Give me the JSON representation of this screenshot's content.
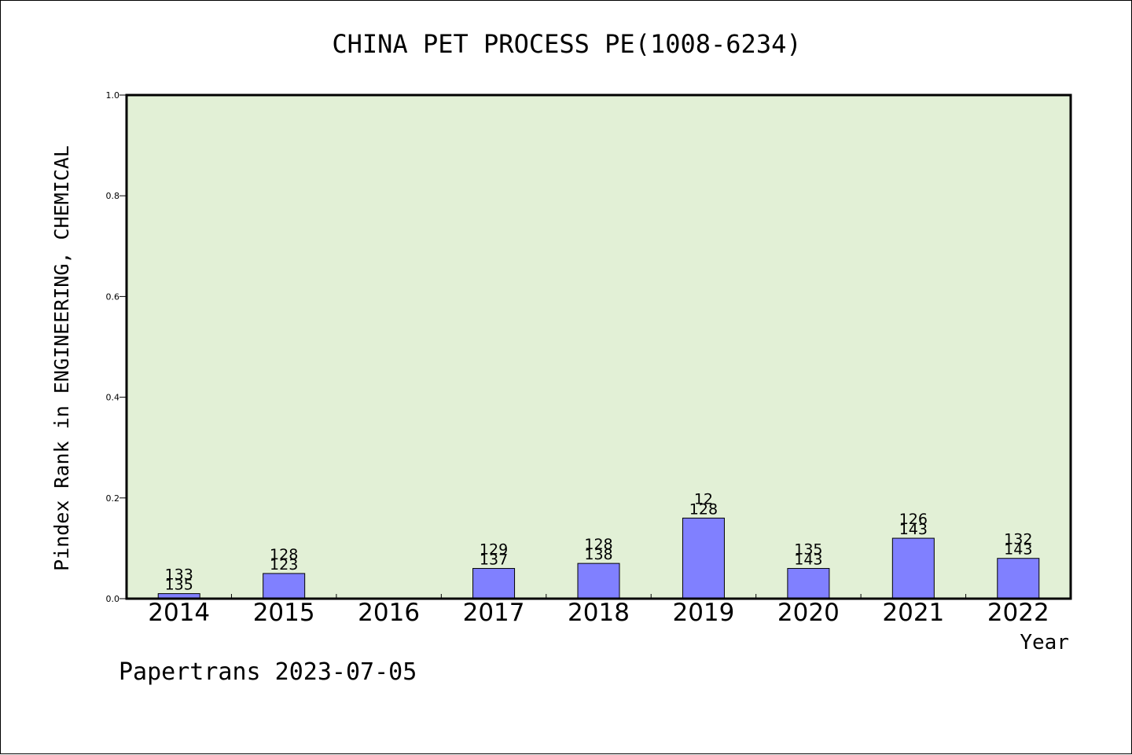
{
  "chart_data": {
    "type": "bar",
    "title": "CHINA PET PROCESS PE(1008-6234)",
    "xlabel": "Year",
    "ylabel": "Pindex Rank in ENGINEERING, CHEMICAL",
    "categories": [
      "2014",
      "2015",
      "2016",
      "2017",
      "2018",
      "2019",
      "2020",
      "2021",
      "2022"
    ],
    "values": [
      0.01,
      0.05,
      0,
      0.06,
      0.07,
      0.16,
      0.06,
      0.12,
      0.08
    ],
    "label_top": [
      "133",
      "128",
      "",
      "129",
      "128",
      "12",
      "135",
      "126",
      "132"
    ],
    "label_bottom": [
      "135",
      "123",
      "",
      "137",
      "138",
      "128",
      "143",
      "143",
      "143"
    ],
    "ylim": [
      0,
      1.0
    ],
    "yticks": [
      "0.0",
      "0.2",
      "0.4",
      "0.6",
      "0.8",
      "1.0"
    ],
    "grid": false,
    "colors": {
      "plot_bg": "#e2f0d6",
      "bar": "#8080ff"
    }
  },
  "footer": "Papertrans 2023-07-05"
}
